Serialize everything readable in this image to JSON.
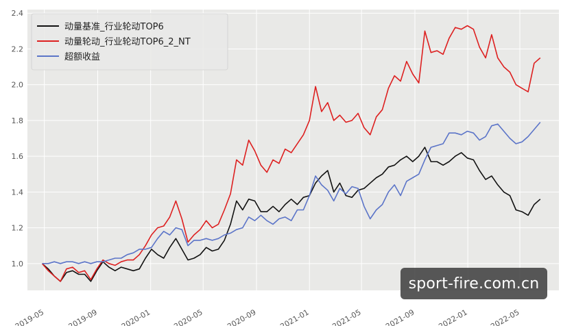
{
  "chart_data": {
    "type": "line",
    "title": "",
    "xlabel": "",
    "ylabel": "",
    "ylim": [
      0.85,
      2.42
    ],
    "xlim": [
      "2019-03-23",
      "2022-07-30"
    ],
    "y_ticks": [
      "1.0",
      "1.2",
      "1.4",
      "1.6",
      "1.8",
      "2.0",
      "2.2",
      "2.4"
    ],
    "x_ticks": [
      "2019-05",
      "2019-09",
      "2020-01",
      "2020-05",
      "2020-09",
      "2021-01",
      "2021-05",
      "2021-09",
      "2022-01",
      "2022-05"
    ],
    "grid": true,
    "legend_position": "top-left",
    "colors": {
      "background": "#e9e9e7",
      "grid": "#ffffff"
    },
    "series": [
      {
        "name": "动量基准_行业轮动TOP6",
        "color": "#111111",
        "points": [
          [
            "2019-04-26",
            1.0
          ],
          [
            "2019-05-10",
            0.97
          ],
          [
            "2019-05-24",
            0.93
          ],
          [
            "2019-06-07",
            0.9
          ],
          [
            "2019-06-21",
            0.95
          ],
          [
            "2019-07-05",
            0.96
          ],
          [
            "2019-07-19",
            0.94
          ],
          [
            "2019-08-02",
            0.94
          ],
          [
            "2019-08-16",
            0.9
          ],
          [
            "2019-08-30",
            0.96
          ],
          [
            "2019-09-13",
            1.01
          ],
          [
            "2019-09-27",
            0.98
          ],
          [
            "2019-10-11",
            0.96
          ],
          [
            "2019-10-25",
            0.98
          ],
          [
            "2019-11-08",
            0.97
          ],
          [
            "2019-11-22",
            0.96
          ],
          [
            "2019-12-06",
            0.97
          ],
          [
            "2019-12-20",
            1.03
          ],
          [
            "2020-01-03",
            1.08
          ],
          [
            "2020-01-17",
            1.05
          ],
          [
            "2020-01-31",
            1.03
          ],
          [
            "2020-02-14",
            1.09
          ],
          [
            "2020-02-28",
            1.14
          ],
          [
            "2020-03-13",
            1.08
          ],
          [
            "2020-03-27",
            1.02
          ],
          [
            "2020-04-10",
            1.03
          ],
          [
            "2020-04-24",
            1.05
          ],
          [
            "2020-05-08",
            1.09
          ],
          [
            "2020-05-22",
            1.07
          ],
          [
            "2020-06-05",
            1.08
          ],
          [
            "2020-06-19",
            1.13
          ],
          [
            "2020-07-03",
            1.22
          ],
          [
            "2020-07-17",
            1.35
          ],
          [
            "2020-07-31",
            1.3
          ],
          [
            "2020-08-14",
            1.36
          ],
          [
            "2020-08-28",
            1.35
          ],
          [
            "2020-09-11",
            1.29
          ],
          [
            "2020-09-25",
            1.29
          ],
          [
            "2020-10-09",
            1.32
          ],
          [
            "2020-10-23",
            1.29
          ],
          [
            "2020-11-06",
            1.33
          ],
          [
            "2020-11-20",
            1.36
          ],
          [
            "2020-12-04",
            1.33
          ],
          [
            "2020-12-18",
            1.37
          ],
          [
            "2021-01-01",
            1.38
          ],
          [
            "2021-01-15",
            1.45
          ],
          [
            "2021-01-29",
            1.49
          ],
          [
            "2021-02-12",
            1.52
          ],
          [
            "2021-02-26",
            1.4
          ],
          [
            "2021-03-12",
            1.45
          ],
          [
            "2021-03-26",
            1.38
          ],
          [
            "2021-04-09",
            1.37
          ],
          [
            "2021-04-23",
            1.41
          ],
          [
            "2021-05-07",
            1.42
          ],
          [
            "2021-05-21",
            1.45
          ],
          [
            "2021-06-04",
            1.48
          ],
          [
            "2021-06-18",
            1.5
          ],
          [
            "2021-07-02",
            1.54
          ],
          [
            "2021-07-16",
            1.55
          ],
          [
            "2021-07-30",
            1.58
          ],
          [
            "2021-08-13",
            1.6
          ],
          [
            "2021-08-27",
            1.57
          ],
          [
            "2021-09-10",
            1.6
          ],
          [
            "2021-09-24",
            1.65
          ],
          [
            "2021-10-08",
            1.57
          ],
          [
            "2021-10-22",
            1.57
          ],
          [
            "2021-11-05",
            1.55
          ],
          [
            "2021-11-19",
            1.57
          ],
          [
            "2021-12-03",
            1.6
          ],
          [
            "2021-12-17",
            1.62
          ],
          [
            "2021-12-31",
            1.59
          ],
          [
            "2022-01-14",
            1.58
          ],
          [
            "2022-01-28",
            1.52
          ],
          [
            "2022-02-11",
            1.47
          ],
          [
            "2022-02-25",
            1.49
          ],
          [
            "2022-03-11",
            1.44
          ],
          [
            "2022-03-25",
            1.4
          ],
          [
            "2022-04-08",
            1.38
          ],
          [
            "2022-04-22",
            1.3
          ],
          [
            "2022-05-06",
            1.29
          ],
          [
            "2022-05-20",
            1.27
          ],
          [
            "2022-06-03",
            1.33
          ],
          [
            "2022-06-17",
            1.36
          ]
        ]
      },
      {
        "name": "动量轮动_行业轮动TOP6_2_NT",
        "color": "#dd1f1f",
        "points": [
          [
            "2019-04-26",
            1.0
          ],
          [
            "2019-05-10",
            0.96
          ],
          [
            "2019-05-24",
            0.93
          ],
          [
            "2019-06-07",
            0.9
          ],
          [
            "2019-06-21",
            0.97
          ],
          [
            "2019-07-05",
            0.98
          ],
          [
            "2019-07-19",
            0.95
          ],
          [
            "2019-08-02",
            0.96
          ],
          [
            "2019-08-16",
            0.91
          ],
          [
            "2019-08-30",
            0.97
          ],
          [
            "2019-09-13",
            1.02
          ],
          [
            "2019-09-27",
            1.0
          ],
          [
            "2019-10-11",
            0.99
          ],
          [
            "2019-10-25",
            1.01
          ],
          [
            "2019-11-08",
            1.02
          ],
          [
            "2019-11-22",
            1.02
          ],
          [
            "2019-12-06",
            1.05
          ],
          [
            "2019-12-20",
            1.1
          ],
          [
            "2020-01-03",
            1.16
          ],
          [
            "2020-01-17",
            1.2
          ],
          [
            "2020-01-31",
            1.21
          ],
          [
            "2020-02-14",
            1.26
          ],
          [
            "2020-02-28",
            1.35
          ],
          [
            "2020-03-13",
            1.25
          ],
          [
            "2020-03-27",
            1.12
          ],
          [
            "2020-04-10",
            1.16
          ],
          [
            "2020-04-24",
            1.19
          ],
          [
            "2020-05-08",
            1.24
          ],
          [
            "2020-05-22",
            1.2
          ],
          [
            "2020-06-05",
            1.22
          ],
          [
            "2020-06-19",
            1.3
          ],
          [
            "2020-07-03",
            1.39
          ],
          [
            "2020-07-17",
            1.58
          ],
          [
            "2020-07-31",
            1.55
          ],
          [
            "2020-08-14",
            1.69
          ],
          [
            "2020-08-28",
            1.63
          ],
          [
            "2020-09-11",
            1.55
          ],
          [
            "2020-09-25",
            1.51
          ],
          [
            "2020-10-09",
            1.58
          ],
          [
            "2020-10-23",
            1.56
          ],
          [
            "2020-11-06",
            1.64
          ],
          [
            "2020-11-20",
            1.62
          ],
          [
            "2020-12-04",
            1.67
          ],
          [
            "2020-12-18",
            1.72
          ],
          [
            "2021-01-01",
            1.8
          ],
          [
            "2021-01-15",
            1.99
          ],
          [
            "2021-01-29",
            1.85
          ],
          [
            "2021-02-12",
            1.9
          ],
          [
            "2021-02-26",
            1.8
          ],
          [
            "2021-03-12",
            1.83
          ],
          [
            "2021-03-26",
            1.79
          ],
          [
            "2021-04-09",
            1.8
          ],
          [
            "2021-04-23",
            1.84
          ],
          [
            "2021-05-07",
            1.76
          ],
          [
            "2021-05-21",
            1.72
          ],
          [
            "2021-06-04",
            1.82
          ],
          [
            "2021-06-18",
            1.86
          ],
          [
            "2021-07-02",
            1.98
          ],
          [
            "2021-07-16",
            2.05
          ],
          [
            "2021-07-30",
            2.02
          ],
          [
            "2021-08-13",
            2.13
          ],
          [
            "2021-08-27",
            2.06
          ],
          [
            "2021-09-10",
            2.01
          ],
          [
            "2021-09-24",
            2.3
          ],
          [
            "2021-10-08",
            2.18
          ],
          [
            "2021-10-22",
            2.19
          ],
          [
            "2021-11-05",
            2.17
          ],
          [
            "2021-11-19",
            2.26
          ],
          [
            "2021-12-03",
            2.32
          ],
          [
            "2021-12-17",
            2.31
          ],
          [
            "2021-12-31",
            2.33
          ],
          [
            "2022-01-14",
            2.31
          ],
          [
            "2022-01-28",
            2.21
          ],
          [
            "2022-02-11",
            2.15
          ],
          [
            "2022-02-25",
            2.28
          ],
          [
            "2022-03-11",
            2.15
          ],
          [
            "2022-03-25",
            2.1
          ],
          [
            "2022-04-08",
            2.07
          ],
          [
            "2022-04-22",
            2.0
          ],
          [
            "2022-05-06",
            1.98
          ],
          [
            "2022-05-20",
            1.96
          ],
          [
            "2022-06-03",
            2.12
          ],
          [
            "2022-06-17",
            2.15
          ]
        ]
      },
      {
        "name": "超额收益",
        "color": "#5b74c8",
        "points": [
          [
            "2019-04-26",
            1.0
          ],
          [
            "2019-05-10",
            1.0
          ],
          [
            "2019-05-24",
            1.01
          ],
          [
            "2019-06-07",
            1.0
          ],
          [
            "2019-06-21",
            1.01
          ],
          [
            "2019-07-05",
            1.01
          ],
          [
            "2019-07-19",
            1.0
          ],
          [
            "2019-08-02",
            1.01
          ],
          [
            "2019-08-16",
            1.0
          ],
          [
            "2019-08-30",
            1.01
          ],
          [
            "2019-09-13",
            1.01
          ],
          [
            "2019-09-27",
            1.02
          ],
          [
            "2019-10-11",
            1.03
          ],
          [
            "2019-10-25",
            1.03
          ],
          [
            "2019-11-08",
            1.05
          ],
          [
            "2019-11-22",
            1.06
          ],
          [
            "2019-12-06",
            1.08
          ],
          [
            "2019-12-20",
            1.08
          ],
          [
            "2020-01-03",
            1.09
          ],
          [
            "2020-01-17",
            1.14
          ],
          [
            "2020-01-31",
            1.18
          ],
          [
            "2020-02-14",
            1.16
          ],
          [
            "2020-02-28",
            1.2
          ],
          [
            "2020-03-13",
            1.19
          ],
          [
            "2020-03-27",
            1.1
          ],
          [
            "2020-04-10",
            1.13
          ],
          [
            "2020-04-24",
            1.13
          ],
          [
            "2020-05-08",
            1.14
          ],
          [
            "2020-05-22",
            1.13
          ],
          [
            "2020-06-05",
            1.14
          ],
          [
            "2020-06-19",
            1.16
          ],
          [
            "2020-07-03",
            1.17
          ],
          [
            "2020-07-17",
            1.19
          ],
          [
            "2020-07-31",
            1.2
          ],
          [
            "2020-08-14",
            1.26
          ],
          [
            "2020-08-28",
            1.24
          ],
          [
            "2020-09-11",
            1.27
          ],
          [
            "2020-09-25",
            1.24
          ],
          [
            "2020-10-09",
            1.22
          ],
          [
            "2020-10-23",
            1.25
          ],
          [
            "2020-11-06",
            1.26
          ],
          [
            "2020-11-20",
            1.24
          ],
          [
            "2020-12-04",
            1.3
          ],
          [
            "2020-12-18",
            1.3
          ],
          [
            "2021-01-01",
            1.38
          ],
          [
            "2021-01-15",
            1.49
          ],
          [
            "2021-01-29",
            1.44
          ],
          [
            "2021-02-12",
            1.41
          ],
          [
            "2021-02-26",
            1.35
          ],
          [
            "2021-03-12",
            1.42
          ],
          [
            "2021-03-26",
            1.39
          ],
          [
            "2021-04-09",
            1.43
          ],
          [
            "2021-04-23",
            1.42
          ],
          [
            "2021-05-07",
            1.32
          ],
          [
            "2021-05-21",
            1.25
          ],
          [
            "2021-06-04",
            1.3
          ],
          [
            "2021-06-18",
            1.33
          ],
          [
            "2021-07-02",
            1.4
          ],
          [
            "2021-07-16",
            1.44
          ],
          [
            "2021-07-30",
            1.38
          ],
          [
            "2021-08-13",
            1.46
          ],
          [
            "2021-08-27",
            1.48
          ],
          [
            "2021-09-10",
            1.5
          ],
          [
            "2021-09-24",
            1.58
          ],
          [
            "2021-10-08",
            1.65
          ],
          [
            "2021-10-22",
            1.66
          ],
          [
            "2021-11-05",
            1.67
          ],
          [
            "2021-11-19",
            1.73
          ],
          [
            "2021-12-03",
            1.73
          ],
          [
            "2021-12-17",
            1.72
          ],
          [
            "2021-12-31",
            1.74
          ],
          [
            "2022-01-14",
            1.73
          ],
          [
            "2022-01-28",
            1.69
          ],
          [
            "2022-02-11",
            1.71
          ],
          [
            "2022-02-25",
            1.77
          ],
          [
            "2022-03-11",
            1.78
          ],
          [
            "2022-03-25",
            1.74
          ],
          [
            "2022-04-08",
            1.7
          ],
          [
            "2022-04-22",
            1.67
          ],
          [
            "2022-05-06",
            1.68
          ],
          [
            "2022-05-20",
            1.71
          ],
          [
            "2022-06-03",
            1.75
          ],
          [
            "2022-06-17",
            1.79
          ]
        ]
      }
    ]
  },
  "watermark": {
    "text": "sport-fire.com.cn"
  }
}
